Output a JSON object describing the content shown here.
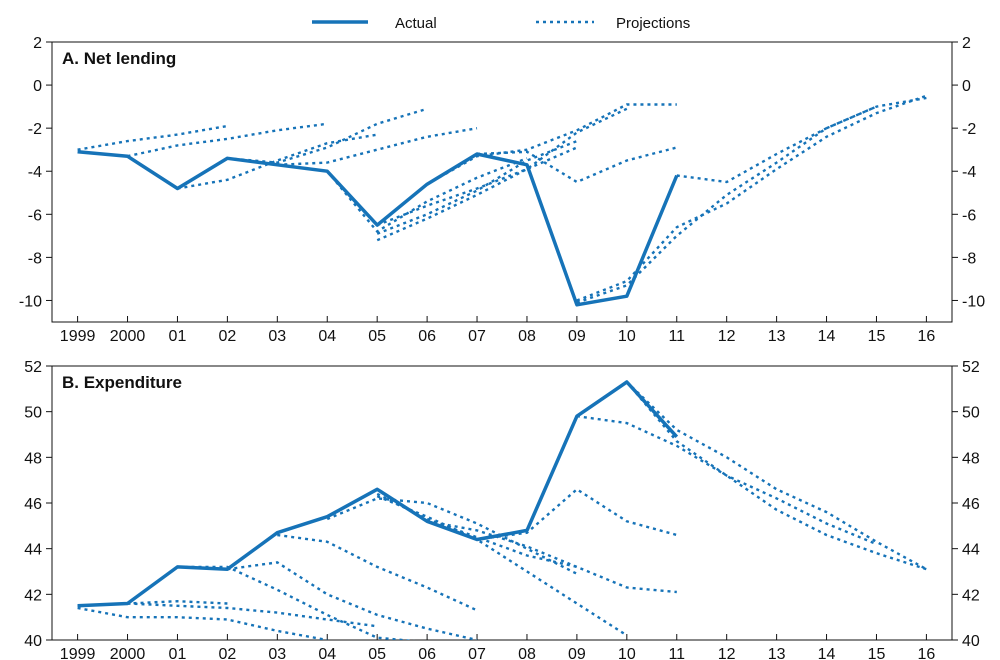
{
  "legend": {
    "actual_label": "Actual",
    "projections_label": "Projections"
  },
  "colors": {
    "series": "#1673b8"
  },
  "x_tick_labels": [
    "1999",
    "2000",
    "01",
    "02",
    "03",
    "04",
    "05",
    "06",
    "07",
    "08",
    "09",
    "10",
    "11",
    "12",
    "13",
    "14",
    "15",
    "16"
  ],
  "chart_data": [
    {
      "type": "line",
      "title": "A. Net lending",
      "x_range": [
        1999,
        2016
      ],
      "ylim": [
        -11,
        2
      ],
      "y_ticks": [
        2,
        0,
        -2,
        -4,
        -6,
        -8,
        -10
      ],
      "grid": false,
      "legend_position": "top-center",
      "series": [
        {
          "name": "Actual",
          "style": "solid",
          "x": [
            1999,
            2000,
            2001,
            2002,
            2003,
            2004,
            2005,
            2006,
            2007,
            2008,
            2009,
            2010,
            2011
          ],
          "y": [
            -3.1,
            -3.3,
            -4.8,
            -3.4,
            -3.7,
            -4.0,
            -6.5,
            -4.6,
            -3.2,
            -3.7,
            -10.2,
            -9.8,
            -4.2
          ]
        },
        {
          "name": "Projections",
          "style": "dotted",
          "lines": [
            {
              "x": [
                1999,
                2000,
                2001,
                2002
              ],
              "y": [
                -3.0,
                -2.6,
                -2.3,
                -1.9
              ]
            },
            {
              "x": [
                2000,
                2001,
                2002,
                2003,
                2004
              ],
              "y": [
                -3.3,
                -2.8,
                -2.5,
                -2.1,
                -1.8
              ]
            },
            {
              "x": [
                2001,
                2002,
                2003,
                2004,
                2005
              ],
              "y": [
                -4.8,
                -4.4,
                -3.5,
                -2.7,
                -2.3
              ]
            },
            {
              "x": [
                2002,
                2003,
                2004,
                2005,
                2006
              ],
              "y": [
                -3.4,
                -3.6,
                -2.9,
                -1.8,
                -1.1
              ]
            },
            {
              "x": [
                2003,
                2004,
                2005,
                2006,
                2007
              ],
              "y": [
                -3.7,
                -3.6,
                -3.0,
                -2.4,
                -2.0
              ]
            },
            {
              "x": [
                2004,
                2005,
                2006,
                2007,
                2008
              ],
              "y": [
                -4.0,
                -6.8,
                -5.4,
                -4.3,
                -3.4
              ]
            },
            {
              "x": [
                2005,
                2006,
                2007,
                2008,
                2009
              ],
              "y": [
                -6.5,
                -5.6,
                -4.8,
                -3.9,
                -2.9
              ]
            },
            {
              "x": [
                2005,
                2006,
                2007,
                2008,
                2009
              ],
              "y": [
                -6.9,
                -6.0,
                -4.9,
                -3.5,
                -2.6
              ]
            },
            {
              "x": [
                2005,
                2006,
                2007,
                2008,
                2009,
                2010
              ],
              "y": [
                -7.2,
                -6.2,
                -5.1,
                -3.9,
                -2.2,
                -1.1
              ]
            },
            {
              "x": [
                2006,
                2007,
                2008,
                2009,
                2010,
                2011
              ],
              "y": [
                -4.6,
                -3.3,
                -3.0,
                -2.1,
                -0.9,
                -0.9
              ]
            },
            {
              "x": [
                2007,
                2008,
                2009,
                2010,
                2011
              ],
              "y": [
                -3.2,
                -3.1,
                -4.5,
                -3.5,
                -2.9
              ]
            },
            {
              "x": [
                2009,
                2010,
                2011,
                2012,
                2013,
                2014,
                2015
              ],
              "y": [
                -10.1,
                -9.3,
                -7.0,
                -5.1,
                -3.6,
                -2.0,
                -1.0
              ]
            },
            {
              "x": [
                2009,
                2010,
                2011,
                2012,
                2013,
                2014,
                2015,
                2016
              ],
              "y": [
                -10.0,
                -9.1,
                -6.6,
                -5.5,
                -3.9,
                -2.4,
                -1.3,
                -0.5
              ]
            },
            {
              "x": [
                2011,
                2012,
                2013,
                2014,
                2015,
                2016
              ],
              "y": [
                -4.2,
                -4.5,
                -3.2,
                -2.0,
                -1.0,
                -0.6
              ]
            }
          ]
        }
      ]
    },
    {
      "type": "line",
      "title": "B. Expenditure",
      "x_range": [
        1999,
        2016
      ],
      "ylim": [
        40,
        52
      ],
      "y_ticks": [
        52,
        50,
        48,
        46,
        44,
        42,
        40
      ],
      "grid": false,
      "series": [
        {
          "name": "Actual",
          "style": "solid",
          "x": [
            1999,
            2000,
            2001,
            2002,
            2003,
            2004,
            2005,
            2006,
            2007,
            2008,
            2009,
            2010,
            2011
          ],
          "y": [
            41.5,
            41.6,
            43.2,
            43.1,
            44.7,
            45.4,
            46.6,
            45.2,
            44.4,
            44.8,
            49.8,
            51.3,
            48.9
          ]
        },
        {
          "name": "Projections",
          "style": "dotted",
          "lines": [
            {
              "x": [
                1999,
                2000,
                2001,
                2002
              ],
              "y": [
                41.5,
                41.6,
                41.7,
                41.6
              ]
            },
            {
              "x": [
                2000,
                2001,
                2002,
                2003,
                2004,
                2005
              ],
              "y": [
                41.6,
                41.5,
                41.4,
                41.2,
                40.9,
                40.6
              ]
            },
            {
              "x": [
                1999,
                2000,
                2001,
                2002,
                2003,
                2004
              ],
              "y": [
                41.4,
                41.0,
                41.0,
                40.9,
                40.4,
                40.0
              ]
            },
            {
              "x": [
                2001,
                2002,
                2003,
                2004,
                2005,
                2006
              ],
              "y": [
                43.2,
                43.2,
                42.2,
                41.1,
                40.1,
                39.9
              ]
            },
            {
              "x": [
                2002,
                2003,
                2004,
                2005,
                2006,
                2007
              ],
              "y": [
                43.1,
                43.4,
                42.0,
                41.1,
                40.5,
                40.0
              ]
            },
            {
              "x": [
                2003,
                2004,
                2005,
                2006,
                2007
              ],
              "y": [
                44.6,
                44.3,
                43.2,
                42.3,
                41.3
              ]
            },
            {
              "x": [
                2004,
                2005,
                2006,
                2007,
                2008,
                2009
              ],
              "y": [
                45.3,
                46.2,
                46.0,
                45.1,
                44.0,
                42.9
              ]
            },
            {
              "x": [
                2005,
                2006,
                2007,
                2008,
                2009
              ],
              "y": [
                46.4,
                45.3,
                44.5,
                43.7,
                43.2
              ]
            },
            {
              "x": [
                2005,
                2006,
                2007,
                2008,
                2009,
                2010
              ],
              "y": [
                46.3,
                45.4,
                44.4,
                43.0,
                41.6,
                40.2
              ]
            },
            {
              "x": [
                2006,
                2007,
                2008,
                2009,
                2010,
                2011
              ],
              "y": [
                45.2,
                44.8,
                44.1,
                43.2,
                42.3,
                42.1
              ]
            },
            {
              "x": [
                2007,
                2008,
                2009,
                2010,
                2011
              ],
              "y": [
                44.4,
                44.7,
                46.6,
                45.2,
                44.6
              ]
            },
            {
              "x": [
                2009,
                2010,
                2011,
                2012,
                2013,
                2014,
                2015
              ],
              "y": [
                49.8,
                49.5,
                48.5,
                47.2,
                46.2,
                45.1,
                44.2
              ]
            },
            {
              "x": [
                2010,
                2011,
                2012,
                2013,
                2014,
                2015,
                2016
              ],
              "y": [
                51.3,
                49.2,
                48.0,
                46.6,
                45.6,
                44.3,
                43.1
              ]
            },
            {
              "x": [
                2010,
                2011,
                2012,
                2013,
                2014,
                2015,
                2016
              ],
              "y": [
                51.3,
                48.7,
                47.2,
                45.7,
                44.6,
                43.8,
                43.1
              ]
            }
          ]
        }
      ]
    }
  ]
}
